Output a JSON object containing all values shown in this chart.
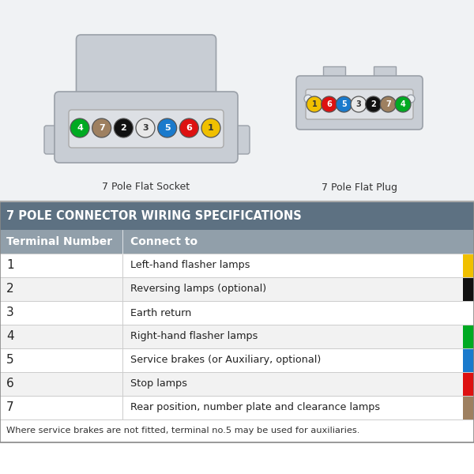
{
  "title": "7 POLE CONNECTOR WIRING SPECIFICATIONS",
  "header_bg": "#5d7182",
  "header_fg": "#ffffff",
  "subheader_bg": "#919faa",
  "subheader_fg": "#ffffff",
  "body_bg": "#ffffff",
  "diagram_bg": "#f0f2f4",
  "connector_color": "#c8cdd4",
  "connector_edge": "#9aa0a8",
  "inner_color": "#dde0e5",
  "inner_edge": "#aaaaaa",
  "footnote": "Where service brakes are not fitted, terminal no.5 may be used for auxiliaries.",
  "col1_header": "Terminal Number",
  "col2_header": "Connect to",
  "rows": [
    {
      "num": "1",
      "desc": "Left-hand flasher lamps",
      "color": "#f0c000"
    },
    {
      "num": "2",
      "desc": "Reversing lamps (optional)",
      "color": "#111111"
    },
    {
      "num": "3",
      "desc": "Earth return",
      "color": "#ffffff"
    },
    {
      "num": "4",
      "desc": "Right-hand flasher lamps",
      "color": "#00aa22"
    },
    {
      "num": "5",
      "desc": "Service brakes (or Auxiliary, optional)",
      "color": "#1a7acc"
    },
    {
      "num": "6",
      "desc": "Stop lamps",
      "color": "#dd1111"
    },
    {
      "num": "7",
      "desc": "Rear position, number plate and clearance lamps",
      "color": "#9e8060"
    }
  ],
  "socket_pins": [
    {
      "num": "4",
      "color": "#00aa22",
      "text_color": "#ffffff"
    },
    {
      "num": "7",
      "color": "#9e8060",
      "text_color": "#ffffff"
    },
    {
      "num": "2",
      "color": "#111111",
      "text_color": "#ffffff"
    },
    {
      "num": "3",
      "color": "#e8e8e8",
      "text_color": "#333333"
    },
    {
      "num": "5",
      "color": "#1a7acc",
      "text_color": "#ffffff"
    },
    {
      "num": "6",
      "color": "#dd1111",
      "text_color": "#ffffff"
    },
    {
      "num": "1",
      "color": "#f0c000",
      "text_color": "#333333"
    }
  ],
  "plug_pins": [
    {
      "num": "1",
      "color": "#f0c000",
      "text_color": "#333333"
    },
    {
      "num": "6",
      "color": "#dd1111",
      "text_color": "#ffffff"
    },
    {
      "num": "5",
      "color": "#1a7acc",
      "text_color": "#ffffff"
    },
    {
      "num": "3",
      "color": "#e8e8e8",
      "text_color": "#333333"
    },
    {
      "num": "2",
      "color": "#111111",
      "text_color": "#ffffff"
    },
    {
      "num": "7",
      "color": "#9e8060",
      "text_color": "#ffffff"
    },
    {
      "num": "4",
      "color": "#00aa22",
      "text_color": "#ffffff"
    }
  ]
}
